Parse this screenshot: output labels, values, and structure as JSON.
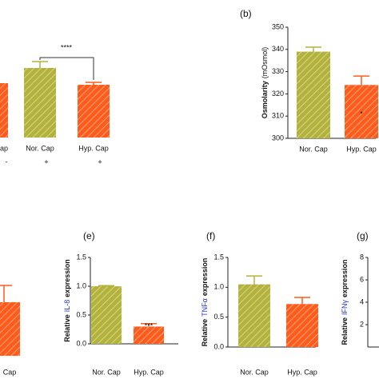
{
  "charts": [
    {
      "type": "bar",
      "categories": [
        "ap",
        "Nor. Cap",
        "Hyp. Cap"
      ],
      "values": [
        68,
        87,
        66
      ],
      "errors": [
        null,
        8,
        3
      ],
      "colors": [
        "#ff5b1a",
        "#b3b23a",
        "#ff5b1a"
      ],
      "ylim": [
        0,
        100
      ],
      "treatment": [
        "-",
        "+",
        "+"
      ],
      "annotation": "****"
    },
    {
      "type": "bar",
      "title": "(b)",
      "ylabel_parts": [
        "Osmolarity",
        "(mOsmol)"
      ],
      "categories": [
        "Nor. Cap",
        "Hyp. Cap"
      ],
      "values": [
        339,
        324
      ],
      "errors": [
        2,
        4
      ],
      "colors": [
        "#b3b23a",
        "#ff5b1a"
      ],
      "ylim": [
        300,
        350
      ],
      "yticks": [
        300,
        310,
        320,
        330,
        340,
        350
      ],
      "annotation": "*"
    },
    {
      "type": "bar",
      "categories": [
        "Cap"
      ],
      "values": [
        67
      ],
      "errors": [
        21
      ],
      "colors": [
        "#ff5b1a"
      ],
      "ylim": [
        0,
        100
      ]
    },
    {
      "type": "bar",
      "title": "(e)",
      "ylabel_parts": [
        "Relative",
        "IL-8",
        "expression"
      ],
      "categories": [
        "Nor. Cap",
        "Hyp. Cap"
      ],
      "values": [
        1.0,
        0.3
      ],
      "errors": [
        0.01,
        0.05
      ],
      "colors": [
        "#b3b23a",
        "#ff5b1a"
      ],
      "ylim": [
        0,
        1.5
      ],
      "yticks": [
        {
          "value": 0,
          "label": "0.0"
        },
        0.5,
        {
          "value": 1,
          "label": "1.0"
        },
        1.5
      ],
      "annotation": "***"
    },
    {
      "type": "bar",
      "title": "(f)",
      "ylabel_parts": [
        "Relative",
        "TNFα",
        "expression"
      ],
      "categories": [
        "Nor. Cap",
        "Hyp. Cap"
      ],
      "values": [
        1.05,
        0.72
      ],
      "errors": [
        0.14,
        0.11
      ],
      "colors": [
        "#b3b23a",
        "#ff5b1a"
      ],
      "ylim": [
        0,
        1.5
      ],
      "yticks": [
        {
          "value": 0,
          "label": "0.0"
        },
        0.5,
        {
          "value": 1,
          "label": "1.0"
        },
        1.5
      ]
    },
    {
      "type": "bar",
      "title": "(g)",
      "ylabel_parts": [
        "Relative",
        "IFNγ",
        "expression"
      ],
      "categories": [],
      "values": [],
      "errors": [],
      "colors": [],
      "ylim": [
        0,
        8
      ],
      "yticks": [
        2,
        4,
        6,
        8
      ]
    }
  ]
}
